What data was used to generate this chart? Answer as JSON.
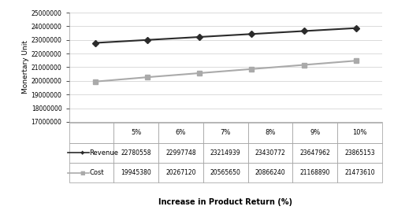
{
  "x_labels": [
    "5%",
    "6%",
    "7%",
    "8%",
    "9%",
    "10%"
  ],
  "x_values": [
    5,
    6,
    7,
    8,
    9,
    10
  ],
  "revenue": [
    22780558,
    22997748,
    23214939,
    23430772,
    23647962,
    23865153
  ],
  "cost": [
    19945380,
    20267120,
    20565650,
    20866240,
    21168890,
    21473610
  ],
  "revenue_color": "#2b2b2b",
  "cost_color": "#aaaaaa",
  "revenue_label": "Revenue",
  "cost_label": "Cost",
  "ylabel": "Monertary Unit",
  "xlabel": "Increase in Product Return (%)",
  "ylim_min": 17000000,
  "ylim_max": 25000000,
  "yticks": [
    17000000,
    18000000,
    19000000,
    20000000,
    21000000,
    22000000,
    23000000,
    24000000,
    25000000
  ],
  "table_header": [
    "",
    "5%",
    "6%",
    "7%",
    "8%",
    "9%",
    "10%"
  ],
  "table_rows": [
    [
      "22780558",
      "22997748",
      "23214939",
      "23430772",
      "23647962",
      "23865153"
    ],
    [
      "19945380",
      "20267120",
      "20565650",
      "20866240",
      "21168890",
      "21473610"
    ]
  ],
  "background_color": "#ffffff",
  "grid_color": "#cccccc",
  "border_color": "#999999"
}
